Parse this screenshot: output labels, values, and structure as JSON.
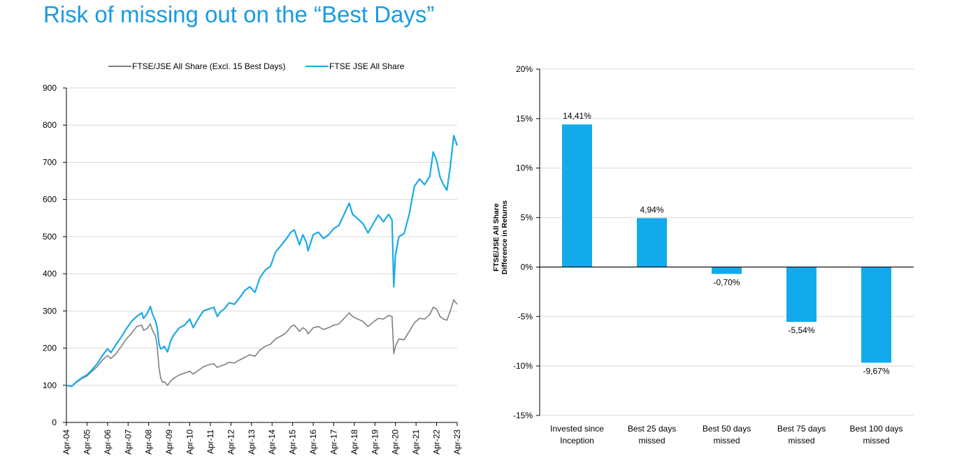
{
  "title": "Risk of missing out on the “Best Days”",
  "chart_data": [
    {
      "type": "line",
      "title": "",
      "xlabel": "",
      "ylabel": "",
      "ylim": [
        0,
        900
      ],
      "yticks": [
        0,
        100,
        200,
        300,
        400,
        500,
        600,
        700,
        800,
        900
      ],
      "x_ticklabels": [
        "Apr-04",
        "Apr-05",
        "Apr-06",
        "Apr-07",
        "Apr-08",
        "Apr-09",
        "Apr-10",
        "Apr-11",
        "Apr-12",
        "Apr-13",
        "Apr-14",
        "Apr-15",
        "Apr-16",
        "Apr-17",
        "Apr-18",
        "Apr-19",
        "Apr-20",
        "Apr-21",
        "Apr-22",
        "Apr-23"
      ],
      "grid": "horizontal",
      "legend": "top-center",
      "series": [
        {
          "name": "FTSE/JSE All Share (Excl. 15 Best Days)",
          "color": "#7f7f7f",
          "points": [
            [
              "2004-04",
              100
            ],
            [
              "2004-07",
              97
            ],
            [
              "2004-10",
              108
            ],
            [
              "2005-01",
              118
            ],
            [
              "2005-04",
              125
            ],
            [
              "2005-07",
              138
            ],
            [
              "2005-10",
              150
            ],
            [
              "2006-01",
              168
            ],
            [
              "2006-04",
              180
            ],
            [
              "2006-06",
              172
            ],
            [
              "2006-09",
              185
            ],
            [
              "2006-12",
              205
            ],
            [
              "2007-03",
              225
            ],
            [
              "2007-06",
              240
            ],
            [
              "2007-09",
              258
            ],
            [
              "2007-12",
              262
            ],
            [
              "2008-01",
              248
            ],
            [
              "2008-03",
              252
            ],
            [
              "2008-05",
              265
            ],
            [
              "2008-06",
              250
            ],
            [
              "2008-08",
              232
            ],
            [
              "2008-09",
              205
            ],
            [
              "2008-10",
              148
            ],
            [
              "2008-11",
              120
            ],
            [
              "2008-12",
              108
            ],
            [
              "2009-01",
              110
            ],
            [
              "2009-03",
              100
            ],
            [
              "2009-05",
              112
            ],
            [
              "2009-07",
              120
            ],
            [
              "2009-10",
              128
            ],
            [
              "2010-01",
              133
            ],
            [
              "2010-04",
              138
            ],
            [
              "2010-06",
              130
            ],
            [
              "2010-09",
              140
            ],
            [
              "2010-12",
              150
            ],
            [
              "2011-03",
              155
            ],
            [
              "2011-06",
              158
            ],
            [
              "2011-08",
              148
            ],
            [
              "2011-10",
              152
            ],
            [
              "2011-12",
              155
            ],
            [
              "2012-03",
              162
            ],
            [
              "2012-06",
              160
            ],
            [
              "2012-09",
              168
            ],
            [
              "2012-12",
              175
            ],
            [
              "2013-03",
              182
            ],
            [
              "2013-06",
              178
            ],
            [
              "2013-09",
              195
            ],
            [
              "2013-12",
              205
            ],
            [
              "2014-03",
              210
            ],
            [
              "2014-06",
              225
            ],
            [
              "2014-09",
              232
            ],
            [
              "2014-12",
              240
            ],
            [
              "2015-03",
              258
            ],
            [
              "2015-05",
              262
            ],
            [
              "2015-08",
              245
            ],
            [
              "2015-10",
              255
            ],
            [
              "2015-12",
              248
            ],
            [
              "2016-01",
              238
            ],
            [
              "2016-04",
              255
            ],
            [
              "2016-07",
              258
            ],
            [
              "2016-10",
              250
            ],
            [
              "2017-01",
              255
            ],
            [
              "2017-04",
              262
            ],
            [
              "2017-07",
              265
            ],
            [
              "2017-10",
              280
            ],
            [
              "2018-01",
              295
            ],
            [
              "2018-03",
              285
            ],
            [
              "2018-06",
              278
            ],
            [
              "2018-09",
              272
            ],
            [
              "2018-12",
              258
            ],
            [
              "2019-03",
              270
            ],
            [
              "2019-06",
              280
            ],
            [
              "2019-09",
              278
            ],
            [
              "2019-12",
              288
            ],
            [
              "2020-02",
              285
            ],
            [
              "2020-03",
              185
            ],
            [
              "2020-04",
              205
            ],
            [
              "2020-06",
              225
            ],
            [
              "2020-09",
              222
            ],
            [
              "2020-12",
              245
            ],
            [
              "2021-03",
              268
            ],
            [
              "2021-06",
              280
            ],
            [
              "2021-09",
              278
            ],
            [
              "2021-12",
              290
            ],
            [
              "2022-02",
              310
            ],
            [
              "2022-04",
              305
            ],
            [
              "2022-06",
              285
            ],
            [
              "2022-08",
              278
            ],
            [
              "2022-10",
              275
            ],
            [
              "2022-12",
              300
            ],
            [
              "2023-02",
              330
            ],
            [
              "2023-04",
              318
            ]
          ]
        },
        {
          "name": "FTSE JSE All Share",
          "color": "#1aaae8",
          "points": [
            [
              "2004-04",
              100
            ],
            [
              "2004-07",
              97
            ],
            [
              "2004-10",
              110
            ],
            [
              "2005-01",
              120
            ],
            [
              "2005-04",
              128
            ],
            [
              "2005-07",
              142
            ],
            [
              "2005-10",
              158
            ],
            [
              "2006-01",
              180
            ],
            [
              "2006-04",
              198
            ],
            [
              "2006-06",
              188
            ],
            [
              "2006-09",
              210
            ],
            [
              "2006-12",
              230
            ],
            [
              "2007-03",
              252
            ],
            [
              "2007-06",
              272
            ],
            [
              "2007-09",
              285
            ],
            [
              "2007-12",
              295
            ],
            [
              "2008-01",
              280
            ],
            [
              "2008-03",
              292
            ],
            [
              "2008-05",
              312
            ],
            [
              "2008-06",
              295
            ],
            [
              "2008-08",
              272
            ],
            [
              "2008-09",
              255
            ],
            [
              "2008-10",
              212
            ],
            [
              "2008-11",
              198
            ],
            [
              "2008-12",
              200
            ],
            [
              "2009-01",
              205
            ],
            [
              "2009-03",
              190
            ],
            [
              "2009-05",
              222
            ],
            [
              "2009-07",
              238
            ],
            [
              "2009-10",
              255
            ],
            [
              "2010-01",
              262
            ],
            [
              "2010-04",
              278
            ],
            [
              "2010-06",
              255
            ],
            [
              "2010-09",
              280
            ],
            [
              "2010-12",
              300
            ],
            [
              "2011-03",
              305
            ],
            [
              "2011-06",
              310
            ],
            [
              "2011-08",
              285
            ],
            [
              "2011-10",
              298
            ],
            [
              "2011-12",
              305
            ],
            [
              "2012-03",
              322
            ],
            [
              "2012-06",
              318
            ],
            [
              "2012-09",
              335
            ],
            [
              "2012-12",
              355
            ],
            [
              "2013-03",
              365
            ],
            [
              "2013-06",
              350
            ],
            [
              "2013-09",
              390
            ],
            [
              "2013-12",
              410
            ],
            [
              "2014-03",
              420
            ],
            [
              "2014-06",
              458
            ],
            [
              "2014-09",
              475
            ],
            [
              "2014-12",
              492
            ],
            [
              "2015-03",
              512
            ],
            [
              "2015-05",
              518
            ],
            [
              "2015-08",
              478
            ],
            [
              "2015-10",
              505
            ],
            [
              "2015-12",
              485
            ],
            [
              "2016-01",
              462
            ],
            [
              "2016-04",
              505
            ],
            [
              "2016-07",
              512
            ],
            [
              "2016-10",
              495
            ],
            [
              "2017-01",
              505
            ],
            [
              "2017-04",
              522
            ],
            [
              "2017-07",
              530
            ],
            [
              "2017-10",
              560
            ],
            [
              "2018-01",
              590
            ],
            [
              "2018-03",
              560
            ],
            [
              "2018-06",
              548
            ],
            [
              "2018-09",
              535
            ],
            [
              "2018-12",
              510
            ],
            [
              "2019-03",
              535
            ],
            [
              "2019-06",
              558
            ],
            [
              "2019-09",
              540
            ],
            [
              "2019-12",
              560
            ],
            [
              "2020-02",
              545
            ],
            [
              "2020-03",
              365
            ],
            [
              "2020-04",
              450
            ],
            [
              "2020-06",
              500
            ],
            [
              "2020-09",
              508
            ],
            [
              "2020-12",
              560
            ],
            [
              "2021-03",
              635
            ],
            [
              "2021-06",
              655
            ],
            [
              "2021-09",
              640
            ],
            [
              "2021-12",
              662
            ],
            [
              "2022-02",
              728
            ],
            [
              "2022-04",
              705
            ],
            [
              "2022-06",
              660
            ],
            [
              "2022-08",
              640
            ],
            [
              "2022-10",
              625
            ],
            [
              "2022-12",
              690
            ],
            [
              "2023-02",
              772
            ],
            [
              "2023-04",
              745
            ]
          ]
        }
      ]
    },
    {
      "type": "bar",
      "title": "",
      "xlabel": "",
      "ylabel": "FTSE/JSE All Share\nDifference in Returns",
      "ylabel_lines": [
        "FTSE/JSE All Share",
        "Difference in Returns"
      ],
      "ylim": [
        -0.15,
        0.2
      ],
      "ytick_values": [
        -0.15,
        -0.1,
        -0.05,
        0,
        0.05,
        0.1,
        0.15,
        0.2
      ],
      "ytick_labels": [
        "-15%",
        "-10%",
        "-5%",
        "0%",
        "5%",
        "10%",
        "15%",
        "20%"
      ],
      "grid": "horizontal",
      "bar_color": "#12aaeb",
      "categories": [
        [
          "Invested since",
          "Inception"
        ],
        [
          "Best 25 days",
          "missed"
        ],
        [
          "Best 50 days",
          "missed"
        ],
        [
          "Best 75 days",
          "missed"
        ],
        [
          "Best 100 days",
          "missed"
        ]
      ],
      "values": [
        0.1441,
        0.0494,
        -0.007,
        -0.0554,
        -0.0967
      ],
      "value_labels": [
        "14,41%",
        "4,94%",
        "-0,70%",
        "-5,54%",
        "-9,67%"
      ]
    }
  ]
}
